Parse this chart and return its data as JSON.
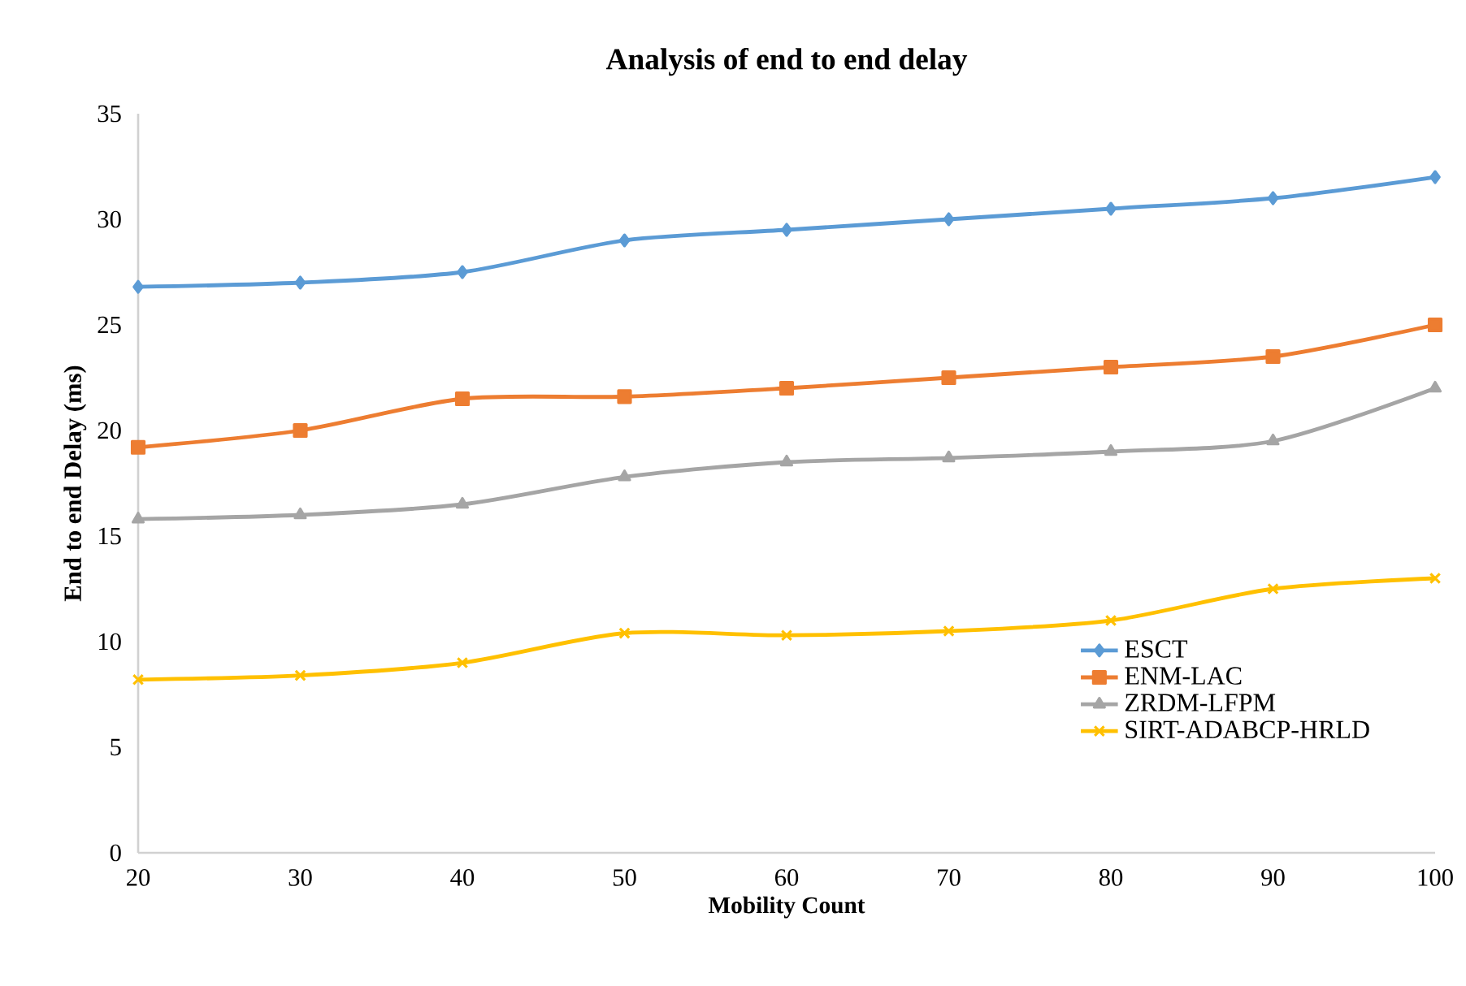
{
  "chart_data": {
    "type": "line",
    "title": "Analysis of end to end delay",
    "xlabel": "Mobility Count",
    "ylabel": "End to end Delay  (ms)",
    "x": [
      20,
      30,
      40,
      50,
      60,
      70,
      80,
      90,
      100
    ],
    "xlim": [
      20,
      100
    ],
    "xticks": [
      20,
      30,
      40,
      50,
      60,
      70,
      80,
      90,
      100
    ],
    "ylim": [
      0,
      35
    ],
    "yticks": [
      0,
      5,
      10,
      15,
      20,
      25,
      30,
      35
    ],
    "grid": false,
    "legend": "bottom right",
    "line_style": "solid",
    "series": [
      {
        "name": "ESCT",
        "color": "#5b9bd5",
        "marker": "diamond",
        "values": [
          26.8,
          27.0,
          27.5,
          29.0,
          29.5,
          30.0,
          30.5,
          31.0,
          32.0
        ]
      },
      {
        "name": "ENM-LAC",
        "color": "#ed7d31",
        "marker": "square",
        "values": [
          19.2,
          20.0,
          21.5,
          21.6,
          22.0,
          22.5,
          23.0,
          23.5,
          25.0
        ]
      },
      {
        "name": "ZRDM-LFPM",
        "color": "#a5a5a5",
        "marker": "triangle",
        "values": [
          15.8,
          16.0,
          16.5,
          17.8,
          18.5,
          18.7,
          19.0,
          19.5,
          22.0
        ]
      },
      {
        "name": "SIRT-ADABCP-HRLD",
        "color": "#ffc000",
        "marker": "cross",
        "values": [
          8.2,
          8.4,
          9.0,
          10.4,
          10.3,
          10.5,
          11.0,
          12.5,
          13.0
        ]
      }
    ]
  }
}
